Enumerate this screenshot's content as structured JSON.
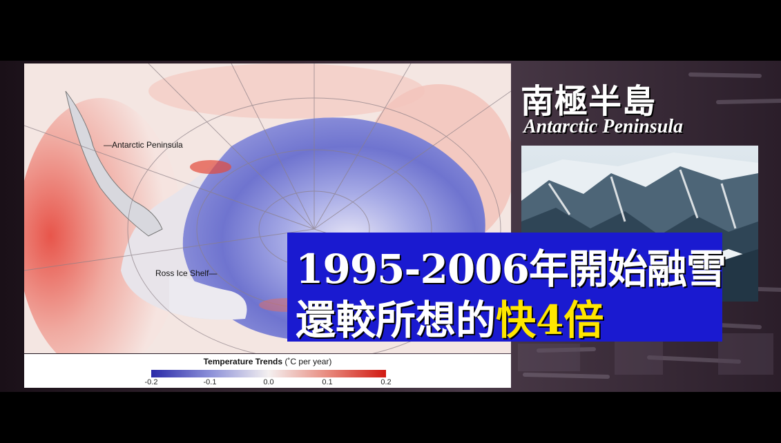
{
  "title": {
    "chinese": "南極半島",
    "english": "Antarctic Peninsula"
  },
  "map": {
    "labels": {
      "peninsula": "Antarctic Peninsula",
      "ross": "Ross Ice Shelf"
    },
    "legend": {
      "title": "Temperature Trends",
      "unit": "(˚C per year)",
      "ticks": [
        "-0.2",
        "-0.1",
        "0.0",
        "0.1",
        "0.2"
      ],
      "colors": {
        "cold": "#2a2aa8",
        "neutral": "#f4f0f0",
        "warm": "#d11a12"
      }
    }
  },
  "caption": {
    "line1": "1995-2006年開始融雪",
    "line2_prefix": "還較所想的",
    "line2_highlight": "快4倍",
    "box_color": "#1a1ad0",
    "highlight_color": "#ffe600"
  }
}
